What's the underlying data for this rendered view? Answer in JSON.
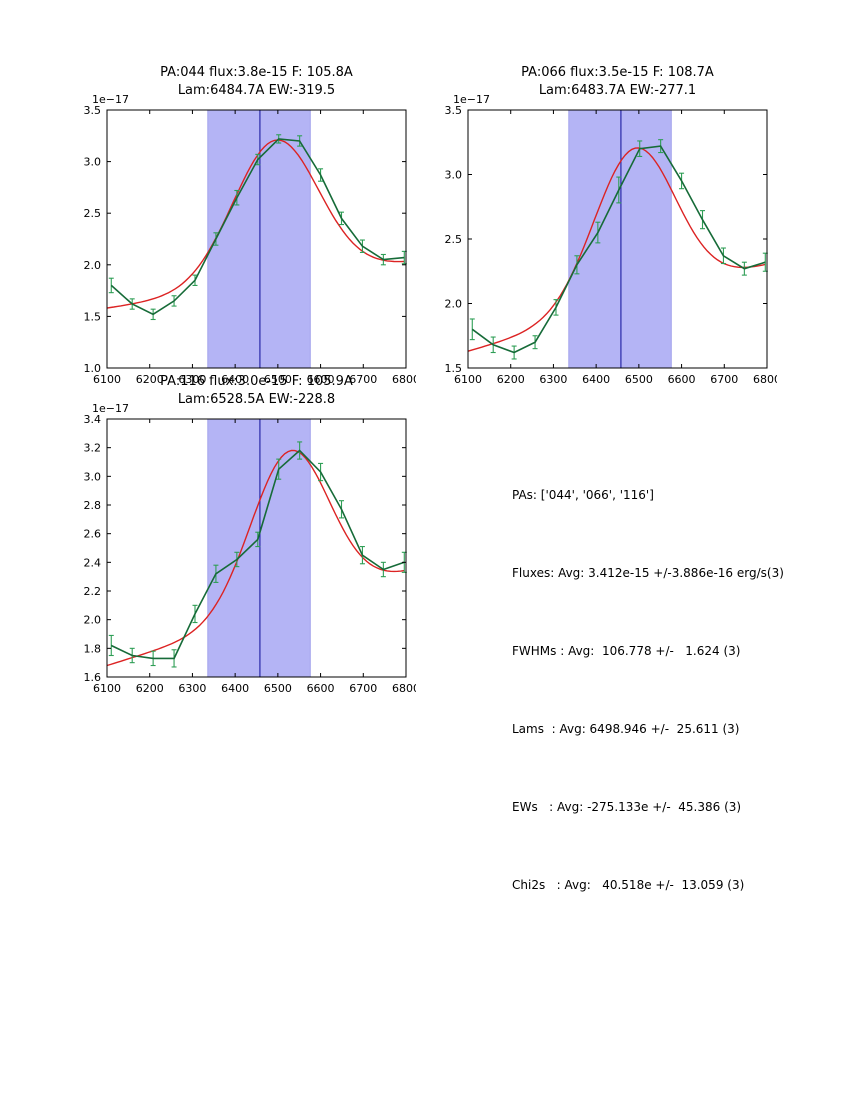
{
  "colors": {
    "background": "#ffffff",
    "band": "#b4b4f5",
    "band_edge": "#a3a3ec",
    "vline": "#2828a8",
    "data_line": "#166b38",
    "error_bar": "#2e9e55",
    "fit_line": "#dc2323",
    "axis": "#000000"
  },
  "stats_panel": {
    "lines": [
      "PAs: ['044', '066', '116']",
      "Fluxes: Avg: 3.412e-15 +/-3.886e-16 erg/s(3)",
      "FWHMs : Avg:  106.778 +/-   1.624 (3)",
      "Lams  : Avg: 6498.946 +/-  25.611 (3)",
      "EWs   : Avg: -275.133e +/-  45.386 (3)",
      "Chi2s   : Avg:   40.518e +/-  13.059 (3)"
    ]
  },
  "chart_data": [
    {
      "id": "pa044",
      "type": "line",
      "title_line1": "PA:044 flux:3.8e-15 F: 105.8A",
      "title_line2": "Lam:6484.7A EW:-319.5",
      "offset_label": "1e−17",
      "xlabel": "",
      "ylabel": "",
      "xlim": [
        6100,
        6800
      ],
      "ylim": [
        1.0,
        3.5
      ],
      "xticks": [
        6100,
        6200,
        6300,
        6400,
        6500,
        6600,
        6700,
        6800
      ],
      "yticks": [
        1.0,
        1.5,
        2.0,
        2.5,
        3.0,
        3.5
      ],
      "band": [
        6336,
        6576
      ],
      "vline": 6458,
      "series": [
        {
          "name": "data",
          "x": [
            6110,
            6159,
            6208,
            6257,
            6306,
            6355,
            6404,
            6453,
            6502,
            6551,
            6600,
            6649,
            6698,
            6747,
            6796
          ],
          "y": [
            1.8,
            1.62,
            1.52,
            1.65,
            1.85,
            2.25,
            2.65,
            3.02,
            3.22,
            3.2,
            2.87,
            2.45,
            2.18,
            2.05,
            2.07
          ],
          "yerr": [
            0.07,
            0.05,
            0.05,
            0.05,
            0.05,
            0.06,
            0.07,
            0.05,
            0.04,
            0.05,
            0.06,
            0.06,
            0.06,
            0.05,
            0.06
          ]
        },
        {
          "name": "fit",
          "model": "gaussian+linear",
          "center": 6495,
          "sigma": 100,
          "amplitude": 1.38,
          "continuum_left": 1.58,
          "continuum_right": 2.02
        }
      ]
    },
    {
      "id": "pa066",
      "type": "line",
      "title_line1": "PA:066 flux:3.5e-15 F: 108.7A",
      "title_line2": "Lam:6483.7A EW:-277.1",
      "offset_label": "1e−17",
      "xlabel": "",
      "ylabel": "",
      "xlim": [
        6100,
        6800
      ],
      "ylim": [
        1.5,
        3.5
      ],
      "xticks": [
        6100,
        6200,
        6300,
        6400,
        6500,
        6600,
        6700,
        6800
      ],
      "yticks": [
        1.5,
        2.0,
        2.5,
        3.0,
        3.5
      ],
      "band": [
        6336,
        6576
      ],
      "vline": 6458,
      "series": [
        {
          "name": "data",
          "x": [
            6110,
            6159,
            6208,
            6257,
            6306,
            6355,
            6404,
            6453,
            6502,
            6551,
            6600,
            6649,
            6698,
            6747,
            6796
          ],
          "y": [
            1.8,
            1.68,
            1.62,
            1.7,
            1.97,
            2.3,
            2.55,
            2.88,
            3.2,
            3.22,
            2.95,
            2.65,
            2.37,
            2.27,
            2.32
          ],
          "yerr": [
            0.08,
            0.06,
            0.05,
            0.05,
            0.06,
            0.07,
            0.08,
            0.1,
            0.06,
            0.05,
            0.06,
            0.07,
            0.06,
            0.05,
            0.07
          ]
        },
        {
          "name": "fit",
          "model": "gaussian+linear",
          "center": 6490,
          "sigma": 95,
          "amplitude": 1.2,
          "continuum_left": 1.63,
          "continuum_right": 2.3
        }
      ]
    },
    {
      "id": "pa116",
      "type": "line",
      "title_line1": "PA:116 flux:3.0e-15 F: 105.9A",
      "title_line2": "Lam:6528.5A EW:-228.8",
      "offset_label": "1e−17",
      "xlabel": "",
      "ylabel": "",
      "xlim": [
        6100,
        6800
      ],
      "ylim": [
        1.6,
        3.4
      ],
      "xticks": [
        6100,
        6200,
        6300,
        6400,
        6500,
        6600,
        6700,
        6800
      ],
      "yticks": [
        1.6,
        1.8,
        2.0,
        2.2,
        2.4,
        2.6,
        2.8,
        3.0,
        3.2,
        3.4
      ],
      "band": [
        6336,
        6576
      ],
      "vline": 6458,
      "series": [
        {
          "name": "data",
          "x": [
            6110,
            6159,
            6208,
            6257,
            6306,
            6355,
            6404,
            6453,
            6502,
            6551,
            6600,
            6649,
            6698,
            6747,
            6796
          ],
          "y": [
            1.82,
            1.75,
            1.73,
            1.73,
            2.04,
            2.32,
            2.42,
            2.56,
            3.05,
            3.18,
            3.03,
            2.77,
            2.45,
            2.35,
            2.4
          ],
          "yerr": [
            0.07,
            0.05,
            0.05,
            0.06,
            0.06,
            0.06,
            0.05,
            0.05,
            0.07,
            0.06,
            0.06,
            0.06,
            0.06,
            0.05,
            0.07
          ]
        },
        {
          "name": "fit",
          "model": "gaussian+linear",
          "center": 6528,
          "sigma": 92,
          "amplitude": 1.1,
          "continuum_left": 1.68,
          "continuum_right": 2.33
        }
      ]
    }
  ]
}
